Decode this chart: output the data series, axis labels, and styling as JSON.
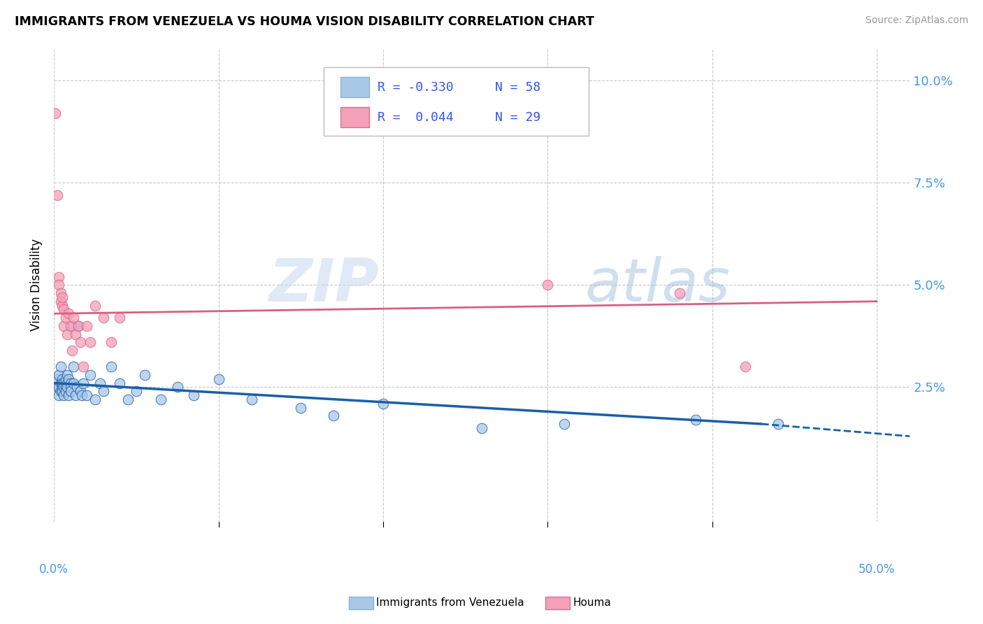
{
  "title": "IMMIGRANTS FROM VENEZUELA VS HOUMA VISION DISABILITY CORRELATION CHART",
  "source": "Source: ZipAtlas.com",
  "ylabel": "Vision Disability",
  "ylabel_right_ticks": [
    "10.0%",
    "7.5%",
    "5.0%",
    "2.5%"
  ],
  "ylabel_right_vals": [
    0.1,
    0.075,
    0.05,
    0.025
  ],
  "xlim": [
    0.0,
    0.52
  ],
  "ylim": [
    -0.008,
    0.108
  ],
  "color_blue": "#a8c8e8",
  "color_pink": "#f4a0b8",
  "line_blue": "#1a5fa8",
  "line_pink": "#d86080",
  "blue_scatter_x": [
    0.001,
    0.002,
    0.002,
    0.003,
    0.003,
    0.003,
    0.004,
    0.004,
    0.004,
    0.005,
    0.005,
    0.005,
    0.005,
    0.006,
    0.006,
    0.006,
    0.007,
    0.007,
    0.007,
    0.008,
    0.008,
    0.008,
    0.009,
    0.009,
    0.01,
    0.01,
    0.01,
    0.011,
    0.012,
    0.012,
    0.013,
    0.014,
    0.015,
    0.016,
    0.017,
    0.018,
    0.02,
    0.022,
    0.025,
    0.028,
    0.03,
    0.035,
    0.04,
    0.045,
    0.05,
    0.055,
    0.065,
    0.075,
    0.085,
    0.1,
    0.12,
    0.15,
    0.17,
    0.2,
    0.26,
    0.31,
    0.39,
    0.44
  ],
  "blue_scatter_y": [
    0.026,
    0.027,
    0.025,
    0.028,
    0.025,
    0.023,
    0.03,
    0.026,
    0.024,
    0.027,
    0.025,
    0.024,
    0.026,
    0.026,
    0.025,
    0.023,
    0.027,
    0.025,
    0.024,
    0.028,
    0.026,
    0.025,
    0.027,
    0.023,
    0.026,
    0.025,
    0.024,
    0.04,
    0.03,
    0.026,
    0.023,
    0.025,
    0.04,
    0.024,
    0.023,
    0.026,
    0.023,
    0.028,
    0.022,
    0.026,
    0.024,
    0.03,
    0.026,
    0.022,
    0.024,
    0.028,
    0.022,
    0.025,
    0.023,
    0.027,
    0.022,
    0.02,
    0.018,
    0.021,
    0.015,
    0.016,
    0.017,
    0.016
  ],
  "pink_scatter_x": [
    0.001,
    0.002,
    0.003,
    0.003,
    0.004,
    0.004,
    0.005,
    0.005,
    0.006,
    0.006,
    0.007,
    0.008,
    0.009,
    0.01,
    0.011,
    0.012,
    0.013,
    0.015,
    0.016,
    0.018,
    0.02,
    0.022,
    0.025,
    0.03,
    0.035,
    0.04,
    0.3,
    0.38,
    0.42
  ],
  "pink_scatter_y": [
    0.092,
    0.072,
    0.052,
    0.05,
    0.046,
    0.048,
    0.045,
    0.047,
    0.044,
    0.04,
    0.042,
    0.038,
    0.043,
    0.04,
    0.034,
    0.042,
    0.038,
    0.04,
    0.036,
    0.03,
    0.04,
    0.036,
    0.045,
    0.042,
    0.036,
    0.042,
    0.05,
    0.048,
    0.03
  ],
  "blue_line_x0": 0.0,
  "blue_line_y0": 0.026,
  "blue_line_x1": 0.43,
  "blue_line_y1": 0.016,
  "blue_line_dash_x1": 0.52,
  "blue_line_dash_y1": 0.013,
  "pink_line_x0": 0.0,
  "pink_line_y0": 0.043,
  "pink_line_x1": 0.5,
  "pink_line_y1": 0.046,
  "watermark_zip": "ZIP",
  "watermark_atlas": "atlas",
  "background_color": "#ffffff",
  "grid_color": "#c8c8c8"
}
